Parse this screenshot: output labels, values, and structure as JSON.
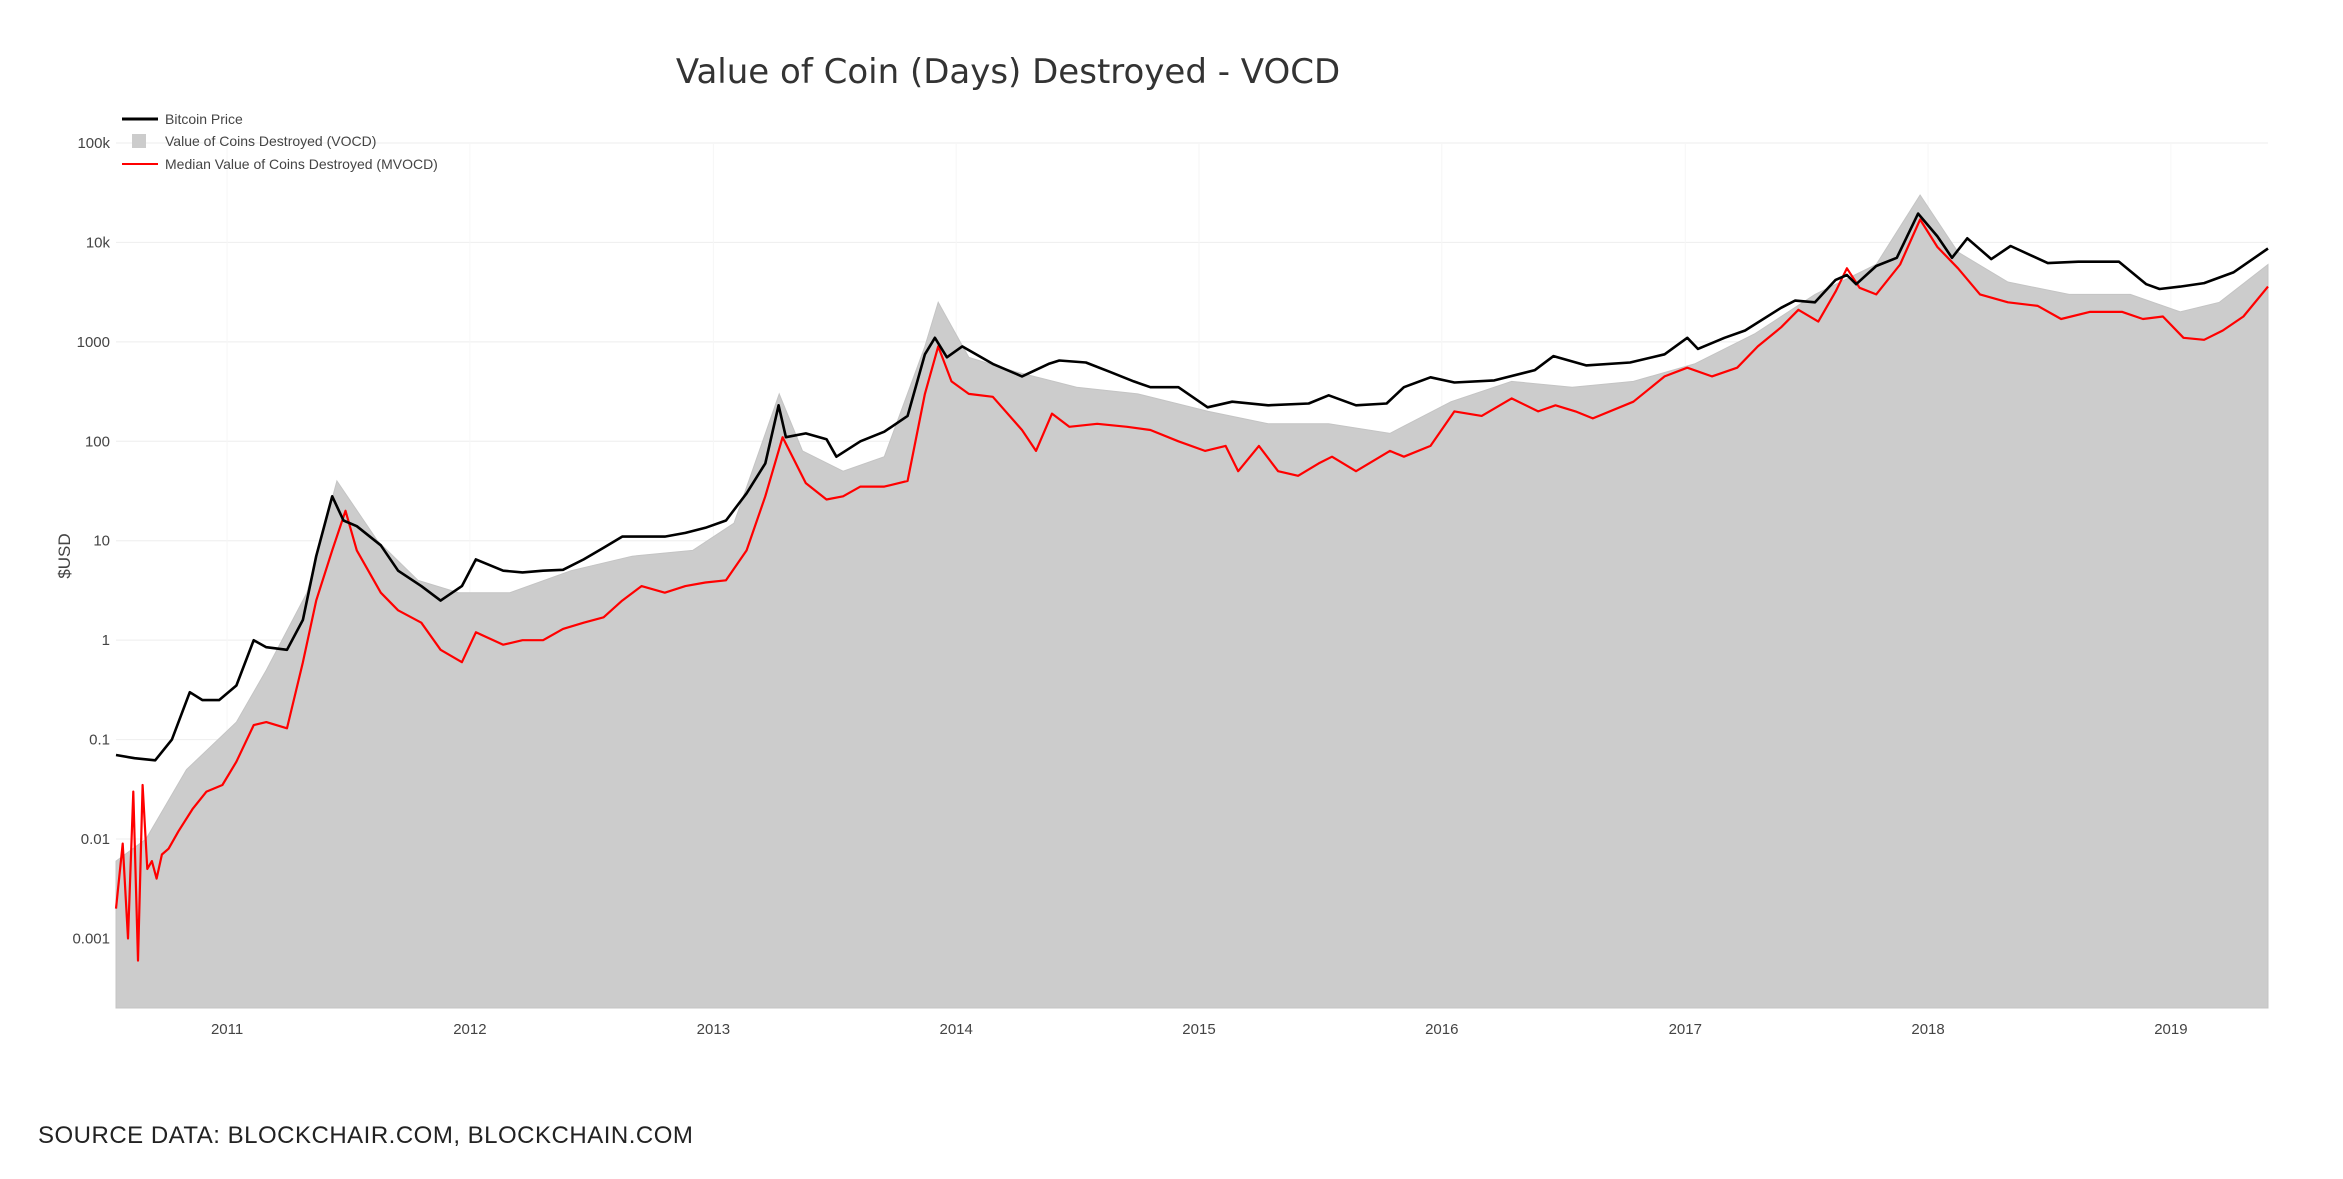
{
  "source_note": "SOURCE DATA: BLOCKCHAIR.COM, BLOCKCHAIN.COM",
  "colors": {
    "price": "#000000",
    "vocd": "#cccccc",
    "mvocd": "#ff0000",
    "grid": "#eeeeee"
  },
  "chart_data": {
    "type": "line",
    "title": "Value of Coin (Days) Destroyed - VOCD",
    "ylabel": "$USD",
    "xlabel": "",
    "yscale": "log",
    "ylim": [
      0.0002,
      100000
    ],
    "xlim": [
      "2010-07-18",
      "2019-05-27"
    ],
    "grid": true,
    "legend_position": "top-left",
    "y_ticks": [
      {
        "value": 100000,
        "label": "100k"
      },
      {
        "value": 10000,
        "label": "10k"
      },
      {
        "value": 1000,
        "label": "1000"
      },
      {
        "value": 100,
        "label": "100"
      },
      {
        "value": 10,
        "label": "10"
      },
      {
        "value": 1,
        "label": "1"
      },
      {
        "value": 0.1,
        "label": "0.1"
      },
      {
        "value": 0.01,
        "label": "0.01"
      },
      {
        "value": 0.001,
        "label": "0.001"
      }
    ],
    "x_ticks": [
      {
        "value": "2011-01-01",
        "label": "2011"
      },
      {
        "value": "2012-01-01",
        "label": "2012"
      },
      {
        "value": "2013-01-01",
        "label": "2013"
      },
      {
        "value": "2014-01-01",
        "label": "2014"
      },
      {
        "value": "2015-01-01",
        "label": "2015"
      },
      {
        "value": "2016-01-01",
        "label": "2016"
      },
      {
        "value": "2017-01-01",
        "label": "2017"
      },
      {
        "value": "2018-01-01",
        "label": "2018"
      },
      {
        "value": "2019-01-01",
        "label": "2019"
      }
    ],
    "series": [
      {
        "name": "Bitcoin Price",
        "type": "line",
        "x": [
          "2010-07-18",
          "2010-08-15",
          "2010-09-15",
          "2010-10-10",
          "2010-11-06",
          "2010-11-25",
          "2010-12-20",
          "2011-01-15",
          "2011-02-10",
          "2011-03-01",
          "2011-04-01",
          "2011-04-25",
          "2011-05-15",
          "2011-06-08",
          "2011-06-25",
          "2011-07-15",
          "2011-08-20",
          "2011-09-15",
          "2011-10-20",
          "2011-11-18",
          "2011-12-20",
          "2012-01-10",
          "2012-02-20",
          "2012-03-20",
          "2012-04-20",
          "2012-05-20",
          "2012-06-20",
          "2012-07-20",
          "2012-08-17",
          "2012-09-15",
          "2012-10-20",
          "2012-11-20",
          "2012-12-20",
          "2013-01-20",
          "2013-02-20",
          "2013-03-20",
          "2013-04-09",
          "2013-04-20",
          "2013-05-20",
          "2013-06-20",
          "2013-07-05",
          "2013-08-10",
          "2013-09-15",
          "2013-10-20",
          "2013-11-15",
          "2013-11-30",
          "2013-12-18",
          "2014-01-10",
          "2014-02-25",
          "2014-04-10",
          "2014-05-20",
          "2014-06-05",
          "2014-07-15",
          "2014-08-20",
          "2014-09-25",
          "2014-10-20",
          "2014-12-01",
          "2015-01-14",
          "2015-02-20",
          "2015-04-15",
          "2015-06-15",
          "2015-07-15",
          "2015-08-25",
          "2015-10-10",
          "2015-11-05",
          "2015-12-15",
          "2016-01-20",
          "2016-03-20",
          "2016-05-20",
          "2016-06-17",
          "2016-08-05",
          "2016-10-10",
          "2016-12-01",
          "2017-01-04",
          "2017-01-20",
          "2017-03-01",
          "2017-04-01",
          "2017-05-25",
          "2017-06-15",
          "2017-07-15",
          "2017-08-15",
          "2017-09-01",
          "2017-09-15",
          "2017-10-15",
          "2017-11-15",
          "2017-12-17",
          "2018-01-15",
          "2018-02-06",
          "2018-03-01",
          "2018-04-06",
          "2018-05-05",
          "2018-06-30",
          "2018-08-15",
          "2018-10-15",
          "2018-11-25",
          "2018-12-15",
          "2019-01-15",
          "2019-02-20",
          "2019-04-05",
          "2019-05-27"
        ],
        "y": [
          0.07,
          0.065,
          0.062,
          0.1,
          0.3,
          0.25,
          0.25,
          0.35,
          1.0,
          0.85,
          0.8,
          1.6,
          7.0,
          28,
          16,
          14,
          9,
          5,
          3.5,
          2.5,
          3.5,
          6.5,
          5.0,
          4.8,
          5.0,
          5.1,
          6.5,
          8.5,
          11,
          11,
          11,
          12,
          13.5,
          16,
          30,
          60,
          230,
          110,
          120,
          105,
          70,
          100,
          125,
          180,
          750,
          1100,
          700,
          900,
          600,
          450,
          600,
          650,
          620,
          500,
          400,
          350,
          350,
          220,
          250,
          230,
          240,
          290,
          230,
          240,
          350,
          440,
          390,
          410,
          520,
          720,
          580,
          620,
          750,
          1100,
          850,
          1100,
          1300,
          2200,
          2600,
          2500,
          4200,
          4700,
          3800,
          5800,
          7000,
          19500,
          11500,
          7000,
          11000,
          6800,
          9200,
          6200,
          6400,
          6400,
          3800,
          3400,
          3600,
          3900,
          5000,
          8700
        ]
      },
      {
        "name": "Median Value of Coins Destroyed (MVOCD)",
        "type": "line",
        "x": [
          "2010-07-18",
          "2010-07-28",
          "2010-08-05",
          "2010-08-13",
          "2010-08-20",
          "2010-08-27",
          "2010-09-03",
          "2010-09-10",
          "2010-09-17",
          "2010-09-25",
          "2010-10-05",
          "2010-10-20",
          "2010-11-10",
          "2010-12-01",
          "2010-12-25",
          "2011-01-15",
          "2011-02-10",
          "2011-03-01",
          "2011-04-01",
          "2011-04-25",
          "2011-05-15",
          "2011-06-08",
          "2011-06-28",
          "2011-07-15",
          "2011-08-20",
          "2011-09-15",
          "2011-10-20",
          "2011-11-18",
          "2011-12-20",
          "2012-01-10",
          "2012-02-20",
          "2012-03-20",
          "2012-04-20",
          "2012-05-20",
          "2012-06-20",
          "2012-07-20",
          "2012-08-17",
          "2012-09-15",
          "2012-10-20",
          "2012-11-20",
          "2012-12-20",
          "2013-01-20",
          "2013-02-20",
          "2013-03-20",
          "2013-04-15",
          "2013-04-30",
          "2013-05-20",
          "2013-06-20",
          "2013-07-15",
          "2013-08-10",
          "2013-09-15",
          "2013-10-20",
          "2013-11-15",
          "2013-12-05",
          "2013-12-25",
          "2014-01-20",
          "2014-02-25",
          "2014-04-10",
          "2014-05-01",
          "2014-05-25",
          "2014-06-20",
          "2014-08-01",
          "2014-09-15",
          "2014-10-20",
          "2014-12-01",
          "2015-01-10",
          "2015-02-10",
          "2015-03-01",
          "2015-04-01",
          "2015-04-30",
          "2015-05-30",
          "2015-06-30",
          "2015-07-20",
          "2015-08-25",
          "2015-10-15",
          "2015-11-05",
          "2015-12-15",
          "2016-01-20",
          "2016-03-01",
          "2016-04-15",
          "2016-05-25",
          "2016-06-20",
          "2016-07-20",
          "2016-08-15",
          "2016-10-15",
          "2016-12-01",
          "2017-01-04",
          "2017-02-10",
          "2017-03-20",
          "2017-04-20",
          "2017-05-25",
          "2017-06-20",
          "2017-07-20",
          "2017-08-15",
          "2017-09-01",
          "2017-09-20",
          "2017-10-15",
          "2017-11-20",
          "2017-12-20",
          "2018-01-15",
          "2018-02-15",
          "2018-03-20",
          "2018-05-01",
          "2018-06-15",
          "2018-07-20",
          "2018-09-01",
          "2018-10-20",
          "2018-11-20",
          "2018-12-20",
          "2019-01-20",
          "2019-02-20",
          "2019-03-20",
          "2019-04-20",
          "2019-05-27"
        ],
        "y": [
          0.002,
          0.009,
          0.001,
          0.03,
          0.0006,
          0.035,
          0.005,
          0.006,
          0.004,
          0.007,
          0.008,
          0.012,
          0.02,
          0.03,
          0.035,
          0.06,
          0.14,
          0.15,
          0.13,
          0.6,
          2.5,
          8,
          20,
          8,
          3.0,
          2.0,
          1.5,
          0.8,
          0.6,
          1.2,
          0.9,
          1.0,
          1.0,
          1.3,
          1.5,
          1.7,
          2.5,
          3.5,
          3.0,
          3.5,
          3.8,
          4.0,
          8,
          28,
          110,
          70,
          38,
          26,
          28,
          35,
          35,
          40,
          300,
          900,
          400,
          300,
          280,
          130,
          80,
          190,
          140,
          150,
          140,
          130,
          100,
          80,
          90,
          50,
          90,
          50,
          45,
          60,
          70,
          50,
          80,
          70,
          90,
          200,
          180,
          270,
          200,
          230,
          200,
          170,
          250,
          450,
          550,
          450,
          550,
          900,
          1400,
          2100,
          1600,
          3200,
          5500,
          3500,
          3000,
          6000,
          17000,
          9000,
          5500,
          3000,
          2500,
          2300,
          1700,
          2000,
          2000,
          1700,
          1800,
          1100,
          1050,
          1300,
          1800,
          3600
        ]
      },
      {
        "name": "Value of Coins Destroyed (VOCD)",
        "type": "bar",
        "note": "daily bars drawn as a filled envelope",
        "x": [
          "2010-07-18",
          "2010-09-01",
          "2010-11-01",
          "2011-01-15",
          "2011-03-01",
          "2011-05-01",
          "2011-06-15",
          "2011-08-15",
          "2011-10-15",
          "2011-12-15",
          "2012-03-01",
          "2012-06-01",
          "2012-09-01",
          "2012-12-01",
          "2013-02-01",
          "2013-04-10",
          "2013-05-15",
          "2013-07-15",
          "2013-09-15",
          "2013-11-15",
          "2013-12-05",
          "2014-01-20",
          "2014-04-01",
          "2014-07-01",
          "2014-10-01",
          "2015-01-15",
          "2015-04-15",
          "2015-07-15",
          "2015-10-15",
          "2016-01-15",
          "2016-04-15",
          "2016-07-15",
          "2016-10-15",
          "2017-01-15",
          "2017-04-15",
          "2017-07-15",
          "2017-10-15",
          "2017-12-20",
          "2018-02-15",
          "2018-05-01",
          "2018-08-01",
          "2018-11-01",
          "2019-01-15",
          "2019-03-15",
          "2019-05-27"
        ],
        "y": [
          0.006,
          0.01,
          0.05,
          0.15,
          0.5,
          3,
          40,
          10,
          4,
          3,
          3,
          5,
          7,
          8,
          15,
          300,
          80,
          50,
          70,
          900,
          2500,
          700,
          500,
          350,
          300,
          200,
          150,
          150,
          120,
          250,
          400,
          350,
          400,
          600,
          1200,
          3000,
          6000,
          30000,
          8000,
          4000,
          3000,
          3000,
          2000,
          2500,
          6000
        ]
      }
    ]
  }
}
